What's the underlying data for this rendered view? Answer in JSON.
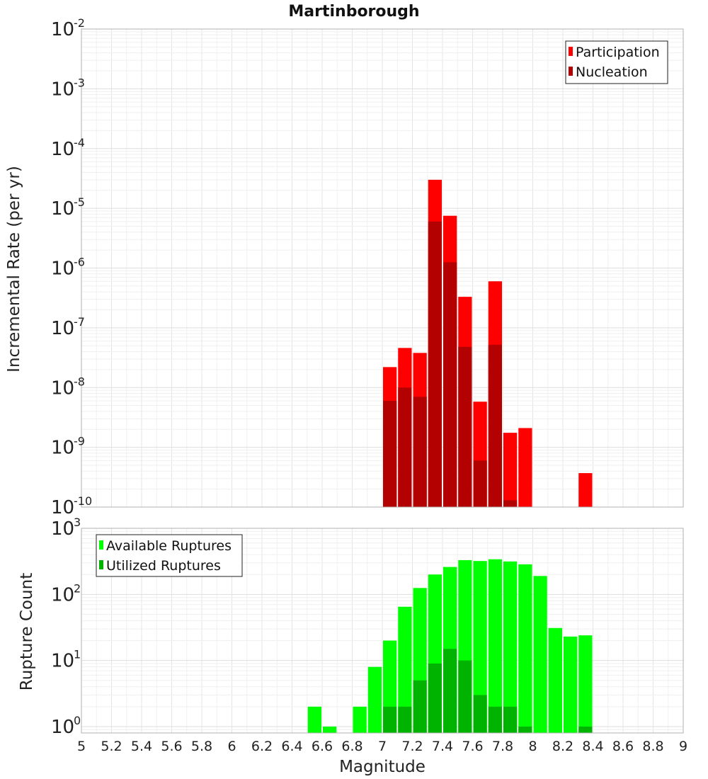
{
  "chart_data": [
    {
      "type": "bar",
      "title": "Martinborough",
      "ylabel": "Incremental Rate (per yr)",
      "xlabel": "",
      "yscale": "log",
      "ylim": [
        1e-10,
        0.01
      ],
      "xlim": [
        5,
        9
      ],
      "grid": true,
      "legend": "top-right",
      "bar_width": 0.1,
      "series": [
        {
          "name": "Participation",
          "color": "#ff0000",
          "points": [
            {
              "x": 7.05,
              "y": 2.2e-08
            },
            {
              "x": 7.15,
              "y": 4.6e-08
            },
            {
              "x": 7.25,
              "y": 3.8e-08
            },
            {
              "x": 7.35,
              "y": 3e-05
            },
            {
              "x": 7.45,
              "y": 7.5e-06
            },
            {
              "x": 7.55,
              "y": 3.3e-07
            },
            {
              "x": 7.65,
              "y": 5.8e-09
            },
            {
              "x": 7.75,
              "y": 6e-07
            },
            {
              "x": 7.85,
              "y": 1.75e-09
            },
            {
              "x": 7.95,
              "y": 2.1e-09
            },
            {
              "x": 8.35,
              "y": 3.7e-10
            }
          ]
        },
        {
          "name": "Nucleation",
          "color": "#b30000",
          "points": [
            {
              "x": 7.05,
              "y": 6e-09
            },
            {
              "x": 7.15,
              "y": 1e-08
            },
            {
              "x": 7.25,
              "y": 7e-09
            },
            {
              "x": 7.35,
              "y": 6e-06
            },
            {
              "x": 7.45,
              "y": 1.25e-06
            },
            {
              "x": 7.55,
              "y": 4.8e-08
            },
            {
              "x": 7.65,
              "y": 6e-10
            },
            {
              "x": 7.75,
              "y": 5.2e-08
            },
            {
              "x": 7.85,
              "y": 1.3e-10
            }
          ]
        }
      ]
    },
    {
      "type": "bar",
      "title": "",
      "ylabel": "Rupture Count",
      "xlabel": "Magnitude",
      "yscale": "log",
      "ylim": [
        0.8,
        1000
      ],
      "xlim": [
        5,
        9
      ],
      "grid": true,
      "legend": "top-left",
      "bar_width": 0.1,
      "x_ticks": [
        "5",
        "5.2",
        "5.4",
        "5.6",
        "5.8",
        "6",
        "6.2",
        "6.4",
        "6.6",
        "6.8",
        "7",
        "7.2",
        "7.4",
        "7.6",
        "7.8",
        "8",
        "8.2",
        "8.4",
        "8.6",
        "8.8",
        "9"
      ],
      "series": [
        {
          "name": "Available Ruptures",
          "color": "#00ff00",
          "points": [
            {
              "x": 6.55,
              "y": 2
            },
            {
              "x": 6.65,
              "y": 1
            },
            {
              "x": 6.85,
              "y": 2
            },
            {
              "x": 6.95,
              "y": 8
            },
            {
              "x": 7.05,
              "y": 20
            },
            {
              "x": 7.15,
              "y": 65
            },
            {
              "x": 7.25,
              "y": 125
            },
            {
              "x": 7.35,
              "y": 200
            },
            {
              "x": 7.45,
              "y": 260
            },
            {
              "x": 7.55,
              "y": 330
            },
            {
              "x": 7.65,
              "y": 320
            },
            {
              "x": 7.75,
              "y": 340
            },
            {
              "x": 7.85,
              "y": 315
            },
            {
              "x": 7.95,
              "y": 285
            },
            {
              "x": 8.05,
              "y": 190
            },
            {
              "x": 8.15,
              "y": 31
            },
            {
              "x": 8.25,
              "y": 23
            },
            {
              "x": 8.35,
              "y": 24
            }
          ]
        },
        {
          "name": "Utilized Ruptures",
          "color": "#00b300",
          "points": [
            {
              "x": 7.05,
              "y": 2
            },
            {
              "x": 7.15,
              "y": 2
            },
            {
              "x": 7.25,
              "y": 5
            },
            {
              "x": 7.35,
              "y": 9
            },
            {
              "x": 7.45,
              "y": 15
            },
            {
              "x": 7.55,
              "y": 10
            },
            {
              "x": 7.65,
              "y": 3
            },
            {
              "x": 7.75,
              "y": 2
            },
            {
              "x": 7.85,
              "y": 2
            },
            {
              "x": 7.95,
              "y": 1
            },
            {
              "x": 8.35,
              "y": 1
            }
          ]
        }
      ]
    }
  ]
}
